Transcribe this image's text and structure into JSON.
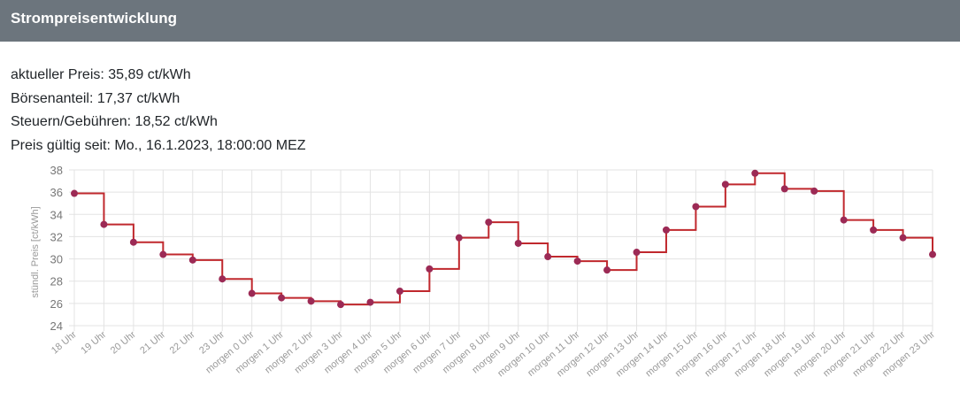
{
  "header": {
    "title": "Strompreisentwicklung"
  },
  "info": {
    "current_price": "aktueller Preis: 35,89 ct/kWh",
    "exchange_share": "Börsenanteil: 17,37 ct/kWh",
    "taxes_fees": "Steuern/Gebühren: 18,52 ct/kWh",
    "valid_since": "Preis gültig seit: Mo., 16.1.2023, 18:00:00 MEZ"
  },
  "colors": {
    "header_bg": "#6c757d",
    "line": "#c0282d",
    "point": "#9c2a55",
    "grid": "#e3e3e3"
  },
  "chart_data": {
    "type": "line",
    "step": true,
    "ylabel": "stündl. Preis [ct/kWh]",
    "ylim": [
      24,
      38
    ],
    "yticks": [
      24,
      26,
      28,
      30,
      32,
      34,
      36,
      38
    ],
    "grid": true,
    "categories": [
      "18 Uhr",
      "19 Uhr",
      "20 Uhr",
      "21 Uhr",
      "22 Uhr",
      "23 Uhr",
      "morgen 0 Uhr",
      "morgen 1 Uhr",
      "morgen 2 Uhr",
      "morgen 3 Uhr",
      "morgen 4 Uhr",
      "morgen 5 Uhr",
      "morgen 6 Uhr",
      "morgen 7 Uhr",
      "morgen 8 Uhr",
      "morgen 9 Uhr",
      "morgen 10 Uhr",
      "morgen 11 Uhr",
      "morgen 12 Uhr",
      "morgen 13 Uhr",
      "morgen 14 Uhr",
      "morgen 15 Uhr",
      "morgen 16 Uhr",
      "morgen 17 Uhr",
      "morgen 18 Uhr",
      "morgen 19 Uhr",
      "morgen 20 Uhr",
      "morgen 21 Uhr",
      "morgen 22 Uhr",
      "morgen 23 Uhr"
    ],
    "values": [
      35.89,
      33.1,
      31.5,
      30.4,
      29.9,
      28.2,
      26.9,
      26.5,
      26.2,
      25.9,
      26.1,
      27.1,
      29.1,
      31.9,
      33.3,
      31.4,
      30.2,
      29.8,
      29.0,
      30.6,
      32.6,
      34.7,
      36.7,
      37.7,
      36.3,
      36.1,
      33.5,
      32.6,
      31.9,
      30.4
    ]
  }
}
